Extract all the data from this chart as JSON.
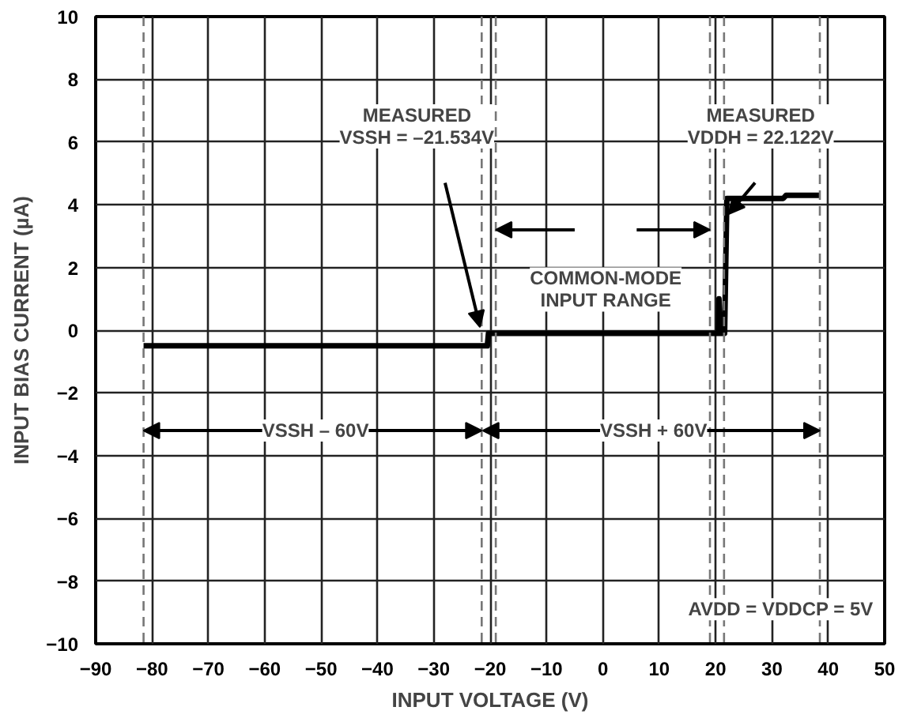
{
  "chart_data": {
    "type": "line",
    "xlabel": "INPUT VOLTAGE (V)",
    "ylabel": "INPUT BIAS CURRENT (µA)",
    "x": [
      -81.5,
      -20.5,
      -20.3,
      20.5,
      20.6,
      20.8,
      21.6,
      22,
      32,
      32.5,
      38.5
    ],
    "series": [
      {
        "color": "#000000",
        "values": [
          -0.5,
          -0.5,
          -0.1,
          -0.1,
          1.0,
          -0.1,
          -0.1,
          4.2,
          4.2,
          4.3,
          4.3
        ]
      }
    ],
    "xlim": [
      -90,
      50
    ],
    "xticks": [
      -90,
      -80,
      -70,
      -60,
      -50,
      -40,
      -30,
      -20,
      -10,
      0,
      10,
      20,
      30,
      40,
      50
    ],
    "ylim": [
      -10,
      10
    ],
    "yticks": [
      -10,
      -8,
      -6,
      -4,
      -2,
      0,
      2,
      4,
      6,
      8,
      10
    ],
    "grid": true,
    "line_style": "solid",
    "ref_lines": [
      {
        "axis": "x",
        "value": -81.5,
        "line_style": "dashed"
      },
      {
        "axis": "x",
        "value": -21.5,
        "line_style": "dashed"
      },
      {
        "axis": "x",
        "value": -19,
        "line_style": "dashed"
      },
      {
        "axis": "x",
        "value": 19,
        "line_style": "dashed"
      },
      {
        "axis": "x",
        "value": 21.5,
        "line_style": "dashed"
      },
      {
        "axis": "x",
        "value": 38.5,
        "line_style": "dashed"
      }
    ],
    "annotations": [
      "MEASURED\nVSSH = –21.534V",
      "MEASURED\nVDDH = 22.122V",
      "COMMON-MODE\nINPUT RANGE",
      {
        "text": "VSSH – 60V",
        "x": -21.5,
        "y": -3.2
      },
      {
        "text": "VSSH + 60V",
        "x": 38.5,
        "y": -3.2
      },
      "AVDD = VDDCP = 5V"
    ]
  }
}
